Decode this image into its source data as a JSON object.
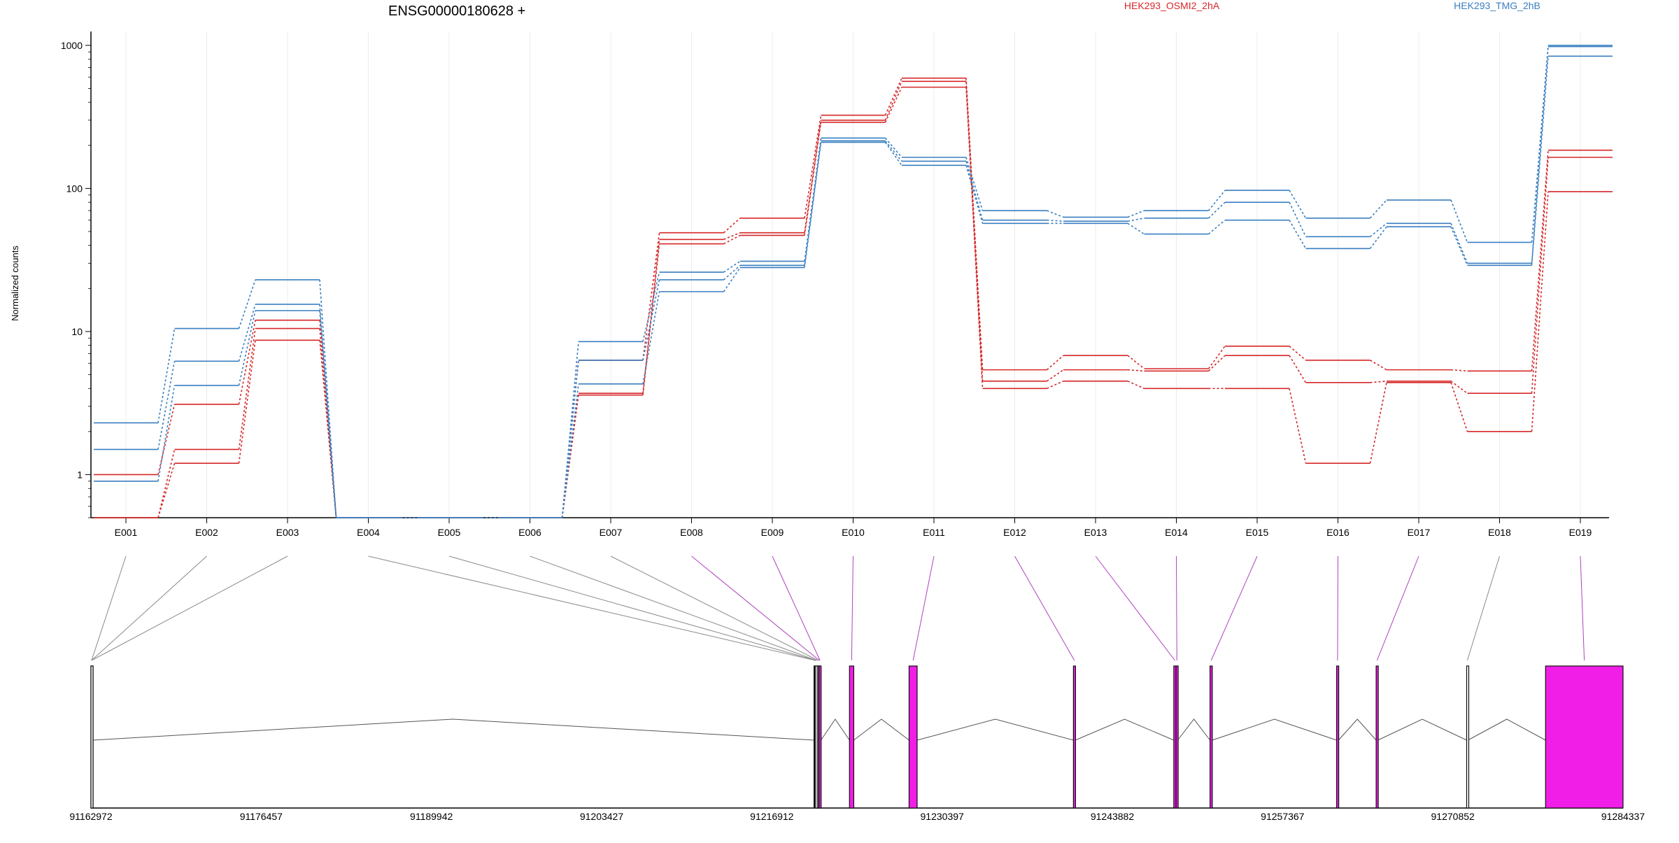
{
  "chart_data": {
    "type": "line",
    "title": "ENSG00000180628 +",
    "ylabel": "Normalized counts",
    "yscale": "log",
    "ylim": [
      0.5,
      1250
    ],
    "yticks": [
      1,
      10,
      100,
      1000
    ],
    "ytick_labels": [
      "1",
      "10",
      "100",
      "1000"
    ],
    "categories": [
      "E001",
      "E002",
      "E003",
      "E004",
      "E005",
      "E006",
      "E007",
      "E008",
      "E009",
      "E010",
      "E011",
      "E012",
      "E013",
      "E014",
      "E015",
      "E016",
      "E017",
      "E018",
      "E019"
    ],
    "legend": [
      {
        "name": "HEK293_OSMI2_2hA",
        "color": "#d62728"
      },
      {
        "name": "HEK293_TMG_2hB",
        "color": "#3a7fc0"
      }
    ],
    "series": [
      {
        "group": "HEK293_OSMI2_2hA",
        "color": "#d62728",
        "values": [
          0.5,
          1.2,
          8.7,
          0.5,
          0.5,
          0.5,
          3.6,
          41,
          47,
          290,
          510,
          4.0,
          4.5,
          4.0,
          4.0,
          1.2,
          4.4,
          2.0,
          95
        ]
      },
      {
        "group": "HEK293_OSMI2_2hA",
        "color": "#d62728",
        "values": [
          0.5,
          1.5,
          10.5,
          0.5,
          0.5,
          0.5,
          3.7,
          44,
          49,
          300,
          560,
          4.5,
          5.4,
          5.3,
          6.8,
          4.4,
          4.5,
          3.7,
          165
        ]
      },
      {
        "group": "HEK293_OSMI2_2hA",
        "color": "#d62728",
        "values": [
          1.0,
          3.1,
          12,
          0.5,
          0.5,
          0.5,
          6.3,
          49,
          62,
          325,
          590,
          5.4,
          6.8,
          5.5,
          7.9,
          6.3,
          5.4,
          5.3,
          185
        ]
      },
      {
        "group": "HEK293_TMG_2hB",
        "color": "#3a7fc0",
        "values": [
          0.9,
          4.2,
          14,
          0.5,
          0.5,
          0.5,
          4.3,
          19,
          28,
          210,
          145,
          57,
          57,
          48,
          60,
          38,
          54,
          29,
          840
        ]
      },
      {
        "group": "HEK293_TMG_2hB",
        "color": "#3a7fc0",
        "values": [
          1.5,
          6.2,
          15.5,
          0.5,
          0.5,
          0.5,
          6.3,
          23,
          29,
          215,
          155,
          60,
          59,
          62,
          80,
          46,
          57,
          30,
          980
        ]
      },
      {
        "group": "HEK293_TMG_2hB",
        "color": "#3a7fc0",
        "values": [
          2.3,
          10.5,
          23,
          0.5,
          0.5,
          0.5,
          8.5,
          26,
          31,
          225,
          165,
          70,
          63,
          70,
          97,
          62,
          83,
          42,
          1000
        ]
      }
    ],
    "gene_model": {
      "coordinate_ticks": [
        "91162972",
        "91176457",
        "91189942",
        "91203427",
        "91216912",
        "91230397",
        "91243882",
        "91257367",
        "91270852",
        "91284337"
      ],
      "range": [
        91162972,
        91284337
      ],
      "exons": [
        {
          "id": "E001",
          "start": 91162972,
          "end": 91163072,
          "significant": false
        },
        {
          "id": "E002",
          "start": 91162972,
          "end": 91163072,
          "significant": false
        },
        {
          "id": "E003",
          "start": 91162972,
          "end": 91163072,
          "significant": false
        },
        {
          "id": "E004",
          "start": 91220250,
          "end": 91220450,
          "significant": false
        },
        {
          "id": "E005",
          "start": 91220300,
          "end": 91220500,
          "significant": false
        },
        {
          "id": "E006",
          "start": 91220350,
          "end": 91220550,
          "significant": false
        },
        {
          "id": "E007",
          "start": 91220500,
          "end": 91220650,
          "significant": false
        },
        {
          "id": "E008",
          "start": 91220600,
          "end": 91220750,
          "significant": true
        },
        {
          "id": "E009",
          "start": 91220650,
          "end": 91220800,
          "significant": true
        },
        {
          "id": "E010",
          "start": 91223060,
          "end": 91223400,
          "significant": true
        },
        {
          "id": "E011",
          "start": 91227780,
          "end": 91228420,
          "significant": true
        },
        {
          "id": "E012",
          "start": 91240800,
          "end": 91240950,
          "significant": true
        },
        {
          "id": "E013",
          "start": 91248750,
          "end": 91248920,
          "significant": true
        },
        {
          "id": "E014",
          "start": 91248930,
          "end": 91249060,
          "significant": true
        },
        {
          "id": "E015",
          "start": 91251620,
          "end": 91251800,
          "significant": true
        },
        {
          "id": "E016",
          "start": 91261650,
          "end": 91261800,
          "significant": true
        },
        {
          "id": "E017",
          "start": 91264780,
          "end": 91264920,
          "significant": true
        },
        {
          "id": "E018",
          "start": 91271950,
          "end": 91272050,
          "significant": false
        },
        {
          "id": "E019",
          "start": 91278200,
          "end": 91284337,
          "significant": true
        }
      ]
    }
  }
}
